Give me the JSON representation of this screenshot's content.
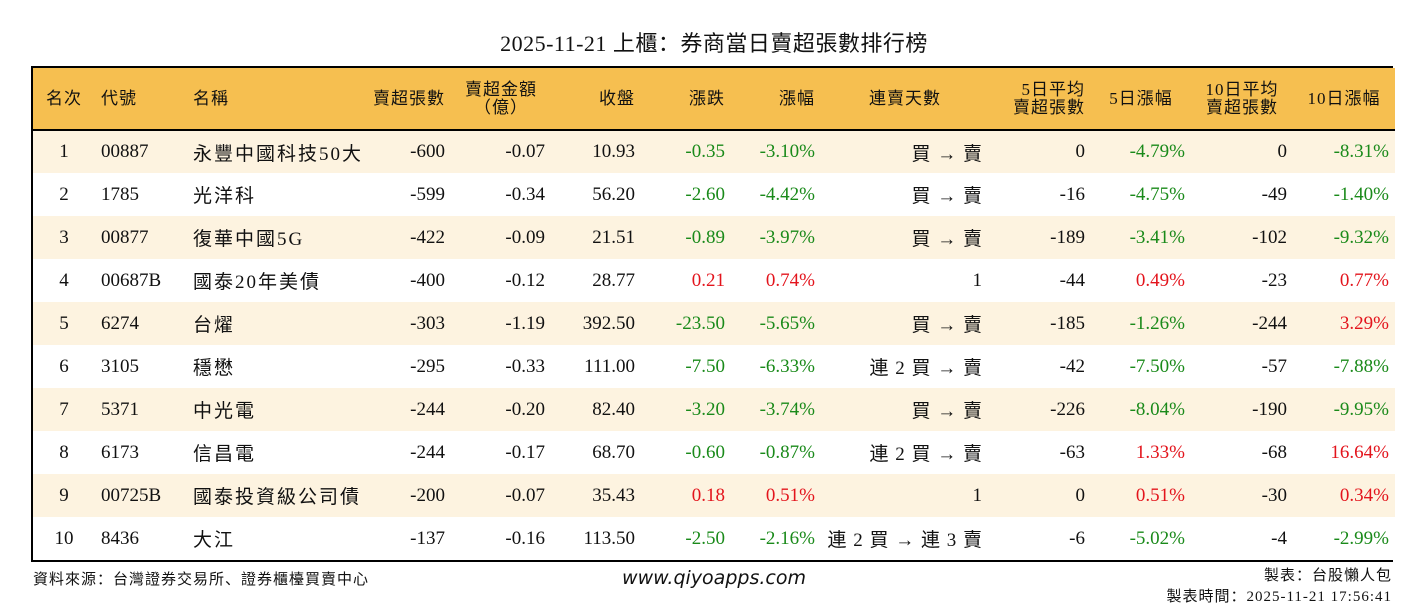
{
  "title": "2025-11-21 上櫃：券商當日賣超張數排行榜",
  "colors": {
    "header_bg": "#f6bf50",
    "row_alt_bg": "#fdf3e0",
    "row_bg": "#ffffff",
    "up": "#e3141c",
    "down": "#1a8a1a",
    "border": "#000000"
  },
  "table": {
    "headers": {
      "rank": "名次",
      "code": "代號",
      "name": "名稱",
      "sell_lots": "賣超張數",
      "sell_amount_line1": "賣超金額",
      "sell_amount_line2": "（億）",
      "close": "收盤",
      "change": "漲跌",
      "change_pct": "漲幅",
      "streak": "連賣天數",
      "avg5_line1": "5日平均",
      "avg5_line2": "賣超張數",
      "pct5": "5日漲幅",
      "avg10_line1": "10日平均",
      "avg10_line2": "賣超張數",
      "pct10": "10日漲幅"
    },
    "rows": [
      {
        "rank": "1",
        "code": "00887",
        "name": "永豐中國科技50大",
        "sell_lots": "-600",
        "sell_amount": "-0.07",
        "close": "10.93",
        "change": "-0.35",
        "change_dir": "down",
        "change_pct": "-3.10%",
        "change_pct_dir": "down",
        "streak": "買 → 賣",
        "avg5": "0",
        "pct5": "-4.79%",
        "pct5_dir": "down",
        "avg10": "0",
        "pct10": "-8.31%",
        "pct10_dir": "down"
      },
      {
        "rank": "2",
        "code": "1785",
        "name": "光洋科",
        "sell_lots": "-599",
        "sell_amount": "-0.34",
        "close": "56.20",
        "change": "-2.60",
        "change_dir": "down",
        "change_pct": "-4.42%",
        "change_pct_dir": "down",
        "streak": "買 → 賣",
        "avg5": "-16",
        "pct5": "-4.75%",
        "pct5_dir": "down",
        "avg10": "-49",
        "pct10": "-1.40%",
        "pct10_dir": "down"
      },
      {
        "rank": "3",
        "code": "00877",
        "name": "復華中國5G",
        "sell_lots": "-422",
        "sell_amount": "-0.09",
        "close": "21.51",
        "change": "-0.89",
        "change_dir": "down",
        "change_pct": "-3.97%",
        "change_pct_dir": "down",
        "streak": "買 → 賣",
        "avg5": "-189",
        "pct5": "-3.41%",
        "pct5_dir": "down",
        "avg10": "-102",
        "pct10": "-9.32%",
        "pct10_dir": "down"
      },
      {
        "rank": "4",
        "code": "00687B",
        "name": "國泰20年美債",
        "sell_lots": "-400",
        "sell_amount": "-0.12",
        "close": "28.77",
        "change": "0.21",
        "change_dir": "up",
        "change_pct": "0.74%",
        "change_pct_dir": "up",
        "streak": "1",
        "avg5": "-44",
        "pct5": "0.49%",
        "pct5_dir": "up",
        "avg10": "-23",
        "pct10": "0.77%",
        "pct10_dir": "up"
      },
      {
        "rank": "5",
        "code": "6274",
        "name": "台燿",
        "sell_lots": "-303",
        "sell_amount": "-1.19",
        "close": "392.50",
        "change": "-23.50",
        "change_dir": "down",
        "change_pct": "-5.65%",
        "change_pct_dir": "down",
        "streak": "買 → 賣",
        "avg5": "-185",
        "pct5": "-1.26%",
        "pct5_dir": "down",
        "avg10": "-244",
        "pct10": "3.29%",
        "pct10_dir": "up"
      },
      {
        "rank": "6",
        "code": "3105",
        "name": "穩懋",
        "sell_lots": "-295",
        "sell_amount": "-0.33",
        "close": "111.00",
        "change": "-7.50",
        "change_dir": "down",
        "change_pct": "-6.33%",
        "change_pct_dir": "down",
        "streak": "連 2 買 → 賣",
        "avg5": "-42",
        "pct5": "-7.50%",
        "pct5_dir": "down",
        "avg10": "-57",
        "pct10": "-7.88%",
        "pct10_dir": "down"
      },
      {
        "rank": "7",
        "code": "5371",
        "name": "中光電",
        "sell_lots": "-244",
        "sell_amount": "-0.20",
        "close": "82.40",
        "change": "-3.20",
        "change_dir": "down",
        "change_pct": "-3.74%",
        "change_pct_dir": "down",
        "streak": "買 → 賣",
        "avg5": "-226",
        "pct5": "-8.04%",
        "pct5_dir": "down",
        "avg10": "-190",
        "pct10": "-9.95%",
        "pct10_dir": "down"
      },
      {
        "rank": "8",
        "code": "6173",
        "name": "信昌電",
        "sell_lots": "-244",
        "sell_amount": "-0.17",
        "close": "68.70",
        "change": "-0.60",
        "change_dir": "down",
        "change_pct": "-0.87%",
        "change_pct_dir": "down",
        "streak": "連 2 買 → 賣",
        "avg5": "-63",
        "pct5": "1.33%",
        "pct5_dir": "up",
        "avg10": "-68",
        "pct10": "16.64%",
        "pct10_dir": "up"
      },
      {
        "rank": "9",
        "code": "00725B",
        "name": "國泰投資級公司債",
        "sell_lots": "-200",
        "sell_amount": "-0.07",
        "close": "35.43",
        "change": "0.18",
        "change_dir": "up",
        "change_pct": "0.51%",
        "change_pct_dir": "up",
        "streak": "1",
        "avg5": "0",
        "pct5": "0.51%",
        "pct5_dir": "up",
        "avg10": "-30",
        "pct10": "0.34%",
        "pct10_dir": "up"
      },
      {
        "rank": "10",
        "code": "8436",
        "name": "大江",
        "sell_lots": "-137",
        "sell_amount": "-0.16",
        "close": "113.50",
        "change": "-2.50",
        "change_dir": "down",
        "change_pct": "-2.16%",
        "change_pct_dir": "down",
        "streak": "連 2 買 → 連 3 賣",
        "avg5": "-6",
        "pct5": "-5.02%",
        "pct5_dir": "down",
        "avg10": "-4",
        "pct10": "-2.99%",
        "pct10_dir": "down"
      }
    ]
  },
  "footer": {
    "source": "資料來源：台灣證券交易所、證券櫃檯買賣中心",
    "website": "www.qiyoapps.com",
    "author": "製表：台股懶人包",
    "made_time": "製表時間：2025-11-21 17:56:41"
  }
}
